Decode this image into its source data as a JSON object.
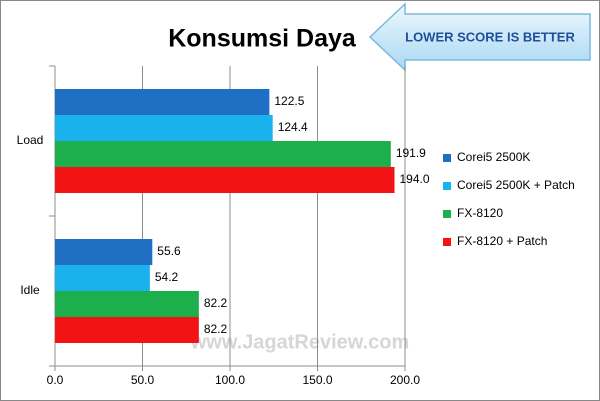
{
  "chart_data": {
    "type": "bar",
    "orientation": "horizontal",
    "title": "Konsumsi Daya",
    "annotation": "LOWER SCORE IS BETTER",
    "watermark": "www.JagatReview.com",
    "categories": [
      "Load",
      "Idle"
    ],
    "series": [
      {
        "name": "Corei5 2500K",
        "color": "#1f6fc5",
        "values": [
          122.5,
          55.6
        ],
        "value_labels": [
          "122.5",
          "55.6"
        ]
      },
      {
        "name": "Corei5 2500K + Patch",
        "color": "#1ab2ee",
        "values": [
          124.4,
          54.2
        ],
        "value_labels": [
          "124.4",
          "54.2"
        ]
      },
      {
        "name": "FX-8120",
        "color": "#1daf4b",
        "values": [
          191.9,
          82.2
        ],
        "value_labels": [
          "191.9",
          "82.2"
        ]
      },
      {
        "name": "FX-8120 + Patch",
        "color": "#f21414",
        "values": [
          194.0,
          82.2
        ],
        "value_labels": [
          "194.0",
          "82.2"
        ]
      }
    ],
    "xlim": [
      0,
      200
    ],
    "xticks": [
      {
        "value": 0,
        "label": "0.0"
      },
      {
        "value": 50,
        "label": "50.0"
      },
      {
        "value": 100,
        "label": "100.0"
      },
      {
        "value": 150,
        "label": "150.0"
      },
      {
        "value": 200,
        "label": "200.0"
      }
    ],
    "grid": true,
    "legend": "right"
  }
}
